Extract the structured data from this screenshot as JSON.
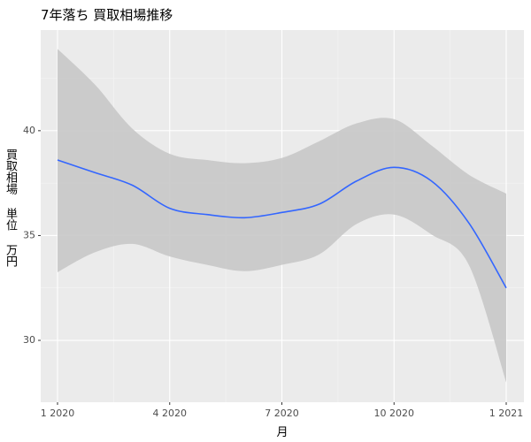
{
  "chart_data": {
    "type": "smooth",
    "title": "7年落ち 買取相場推移",
    "x_label": "月",
    "y_label": "買取相場 単位 万円",
    "x": [
      "2020-01",
      "2020-02",
      "2020-03",
      "2020-04",
      "2020-05",
      "2020-06",
      "2020-07",
      "2020-08",
      "2020-09",
      "2020-10",
      "2020-11",
      "2020-12",
      "2021-01"
    ],
    "values": [
      38.6,
      38.0,
      37.4,
      36.3,
      36.0,
      35.85,
      36.1,
      36.5,
      37.6,
      38.25,
      37.6,
      35.6,
      32.5
    ],
    "ymin": [
      33.25,
      34.2,
      34.6,
      34.0,
      33.6,
      33.3,
      33.6,
      34.1,
      35.55,
      36.0,
      35.05,
      33.6,
      28.0
    ],
    "ymax": [
      43.9,
      42.2,
      40.1,
      38.9,
      38.6,
      38.45,
      38.7,
      39.5,
      40.35,
      40.55,
      39.3,
      37.9,
      37.0
    ],
    "color": "#3366ff",
    "band_color": "#c8c8c8",
    "xlim": [
      "2020-01",
      "2021-01"
    ],
    "xticks": [
      {
        "value": "2020-01",
        "label": "1 2020"
      },
      {
        "value": "2020-04",
        "label": "4 2020"
      },
      {
        "value": "2020-07",
        "label": "7 2020"
      },
      {
        "value": "2020-10",
        "label": "10 2020"
      },
      {
        "value": "2021-01",
        "label": "1 2021"
      }
    ],
    "ylim": [
      27.05,
      44.8
    ],
    "yticks": [
      30,
      35,
      40
    ],
    "grid": true
  }
}
